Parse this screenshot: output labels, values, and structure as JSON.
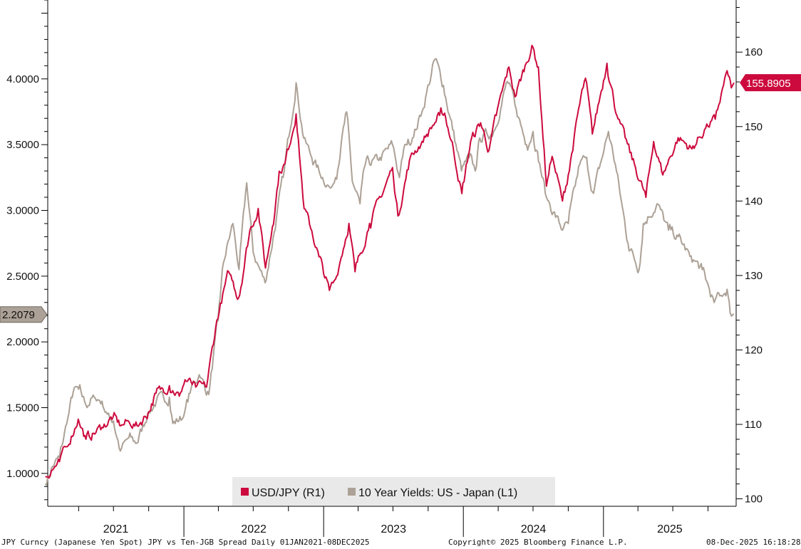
{
  "chart_data": {
    "type": "line",
    "footer": {
      "description": "JPY Curncy (Japanese Yen Spot) JPY vs Ten-JGB Spread Daily 01JAN2021-08DEC2025",
      "copyright": "Copyright© 2025 Bloomberg Finance L.P.",
      "timestamp": "08-Dec-2025 16:18:28"
    },
    "x_axis": {
      "range": [
        "2021-01-01",
        "2025-12-08"
      ],
      "year_labels": [
        "2021",
        "2022",
        "2023",
        "2024",
        "2025"
      ]
    },
    "left_axis": {
      "range": [
        0.75,
        4.6
      ],
      "ticks": [
        "1.0000",
        "1.5000",
        "2.0000",
        "2.5000",
        "3.0000",
        "3.5000",
        "4.0000"
      ],
      "last_value_label": "2.2079",
      "last_value": 2.2079
    },
    "right_axis": {
      "range": [
        99,
        167
      ],
      "ticks": [
        "100",
        "110",
        "120",
        "130",
        "140",
        "150",
        "160"
      ],
      "last_value_label": "155.8905",
      "last_value": 155.8905
    },
    "legend": {
      "placement": "bottom-center",
      "items": [
        "USD/JPY (R1)",
        "10 Year Yields: US - Japan (L1)"
      ]
    },
    "colors": {
      "usdjpy": "#cc0a3d",
      "spread": "#aca196",
      "axis": "#000000"
    },
    "series": [
      {
        "name": "USD/JPY (R1)",
        "axis": "right",
        "color": "#cc0a3d",
        "points": [
          [
            "2021-01-04",
            103.0
          ],
          [
            "2021-01-20",
            103.8
          ],
          [
            "2021-02-10",
            105.0
          ],
          [
            "2021-03-01",
            107.0
          ],
          [
            "2021-03-31",
            110.7
          ],
          [
            "2021-04-20",
            108.0
          ],
          [
            "2021-05-10",
            108.8
          ],
          [
            "2021-06-01",
            109.6
          ],
          [
            "2021-06-30",
            111.0
          ],
          [
            "2021-07-20",
            109.8
          ],
          [
            "2021-08-10",
            110.4
          ],
          [
            "2021-09-01",
            109.8
          ],
          [
            "2021-09-30",
            111.6
          ],
          [
            "2021-10-20",
            114.2
          ],
          [
            "2021-11-24",
            115.2
          ],
          [
            "2021-12-20",
            113.8
          ],
          [
            "2022-01-04",
            116.0
          ],
          [
            "2022-02-01",
            115.0
          ],
          [
            "2022-03-01",
            115.0
          ],
          [
            "2022-03-28",
            124.0
          ],
          [
            "2022-04-28",
            130.5
          ],
          [
            "2022-05-24",
            127.0
          ],
          [
            "2022-06-22",
            136.0
          ],
          [
            "2022-07-14",
            139.0
          ],
          [
            "2022-08-02",
            131.0
          ],
          [
            "2022-08-20",
            136.5
          ],
          [
            "2022-09-07",
            144.0
          ],
          [
            "2022-09-22",
            145.0
          ],
          [
            "2022-10-21",
            151.7
          ],
          [
            "2022-11-11",
            139.0
          ],
          [
            "2022-12-01",
            136.0
          ],
          [
            "2022-12-20",
            132.5
          ],
          [
            "2023-01-16",
            128.0
          ],
          [
            "2023-02-01",
            129.5
          ],
          [
            "2023-03-08",
            137.0
          ],
          [
            "2023-03-24",
            130.5
          ],
          [
            "2023-05-01",
            137.0
          ],
          [
            "2023-05-30",
            140.5
          ],
          [
            "2023-06-30",
            144.5
          ],
          [
            "2023-07-14",
            138.0
          ],
          [
            "2023-08-16",
            146.0
          ],
          [
            "2023-09-15",
            148.0
          ],
          [
            "2023-10-31",
            151.5
          ],
          [
            "2023-11-13",
            151.8
          ],
          [
            "2023-12-06",
            147.0
          ],
          [
            "2023-12-28",
            141.0
          ],
          [
            "2024-01-20",
            148.0
          ],
          [
            "2024-02-15",
            150.5
          ],
          [
            "2024-03-08",
            146.8
          ],
          [
            "2024-03-27",
            151.5
          ],
          [
            "2024-04-29",
            158.0
          ],
          [
            "2024-05-15",
            154.0
          ],
          [
            "2024-06-28",
            160.9
          ],
          [
            "2024-07-15",
            158.0
          ],
          [
            "2024-08-05",
            142.0
          ],
          [
            "2024-08-20",
            146.0
          ],
          [
            "2024-09-16",
            140.0
          ],
          [
            "2024-10-01",
            143.5
          ],
          [
            "2024-10-31",
            153.0
          ],
          [
            "2024-11-15",
            156.5
          ],
          [
            "2024-12-03",
            149.0
          ],
          [
            "2025-01-10",
            158.5
          ],
          [
            "2025-02-05",
            151.5
          ],
          [
            "2025-03-11",
            146.5
          ],
          [
            "2025-04-22",
            140.5
          ],
          [
            "2025-05-12",
            148.0
          ],
          [
            "2025-06-05",
            143.5
          ],
          [
            "2025-07-15",
            148.5
          ],
          [
            "2025-08-20",
            147.0
          ],
          [
            "2025-09-25",
            149.8
          ],
          [
            "2025-10-20",
            151.0
          ],
          [
            "2025-11-20",
            157.5
          ],
          [
            "2025-12-01",
            155.2
          ],
          [
            "2025-12-08",
            155.89
          ]
        ]
      },
      {
        "name": "10 Year Yields: US - Japan (L1)",
        "axis": "left",
        "color": "#aca196",
        "points": [
          [
            "2021-01-04",
            0.92
          ],
          [
            "2021-01-20",
            1.04
          ],
          [
            "2021-02-10",
            1.12
          ],
          [
            "2021-03-01",
            1.38
          ],
          [
            "2021-03-18",
            1.62
          ],
          [
            "2021-04-01",
            1.64
          ],
          [
            "2021-04-20",
            1.52
          ],
          [
            "2021-05-12",
            1.58
          ],
          [
            "2021-06-01",
            1.55
          ],
          [
            "2021-06-15",
            1.45
          ],
          [
            "2021-07-01",
            1.4
          ],
          [
            "2021-07-19",
            1.17
          ],
          [
            "2021-08-10",
            1.27
          ],
          [
            "2021-08-31",
            1.23
          ],
          [
            "2021-09-28",
            1.45
          ],
          [
            "2021-10-21",
            1.55
          ],
          [
            "2021-11-24",
            1.58
          ],
          [
            "2021-12-03",
            1.38
          ],
          [
            "2021-12-31",
            1.43
          ],
          [
            "2022-01-20",
            1.65
          ],
          [
            "2022-02-10",
            1.75
          ],
          [
            "2022-03-07",
            1.6
          ],
          [
            "2022-03-31",
            2.16
          ],
          [
            "2022-04-14",
            2.6
          ],
          [
            "2022-05-09",
            2.9
          ],
          [
            "2022-05-25",
            2.55
          ],
          [
            "2022-06-14",
            3.21
          ],
          [
            "2022-07-01",
            2.68
          ],
          [
            "2022-08-01",
            2.45
          ],
          [
            "2022-08-22",
            2.79
          ],
          [
            "2022-09-20",
            3.3
          ],
          [
            "2022-10-21",
            3.97
          ],
          [
            "2022-11-10",
            3.55
          ],
          [
            "2022-12-01",
            3.4
          ],
          [
            "2022-12-20",
            3.3
          ],
          [
            "2023-01-19",
            3.17
          ],
          [
            "2023-02-01",
            3.25
          ],
          [
            "2023-03-02",
            3.75
          ],
          [
            "2023-03-17",
            3.22
          ],
          [
            "2023-04-06",
            3.05
          ],
          [
            "2023-04-20",
            3.35
          ],
          [
            "2023-05-25",
            3.38
          ],
          [
            "2023-06-30",
            3.5
          ],
          [
            "2023-07-18",
            3.25
          ],
          [
            "2023-08-01",
            3.5
          ],
          [
            "2023-08-21",
            3.55
          ],
          [
            "2023-09-15",
            3.75
          ],
          [
            "2023-10-19",
            4.15
          ],
          [
            "2023-11-10",
            3.95
          ],
          [
            "2023-11-28",
            3.7
          ],
          [
            "2023-12-27",
            3.3
          ],
          [
            "2024-01-16",
            3.4
          ],
          [
            "2024-02-01",
            3.3
          ],
          [
            "2024-02-13",
            3.55
          ],
          [
            "2024-03-20",
            3.6
          ],
          [
            "2024-04-25",
            3.98
          ],
          [
            "2024-05-15",
            3.8
          ],
          [
            "2024-06-14",
            3.5
          ],
          [
            "2024-07-01",
            3.6
          ],
          [
            "2024-08-05",
            3.1
          ],
          [
            "2024-09-16",
            2.85
          ],
          [
            "2024-10-01",
            2.9
          ],
          [
            "2024-10-31",
            3.35
          ],
          [
            "2024-11-15",
            3.4
          ],
          [
            "2024-12-06",
            3.13
          ],
          [
            "2025-01-14",
            3.6
          ],
          [
            "2025-02-01",
            3.35
          ],
          [
            "2025-03-06",
            2.75
          ],
          [
            "2025-04-04",
            2.55
          ],
          [
            "2025-04-15",
            2.9
          ],
          [
            "2025-05-21",
            3.05
          ],
          [
            "2025-06-20",
            2.85
          ],
          [
            "2025-07-15",
            2.8
          ],
          [
            "2025-08-15",
            2.65
          ],
          [
            "2025-09-16",
            2.55
          ],
          [
            "2025-10-17",
            2.3
          ],
          [
            "2025-11-01",
            2.35
          ],
          [
            "2025-11-20",
            2.4
          ],
          [
            "2025-11-28",
            2.22
          ],
          [
            "2025-12-08",
            2.21
          ]
        ]
      }
    ]
  }
}
